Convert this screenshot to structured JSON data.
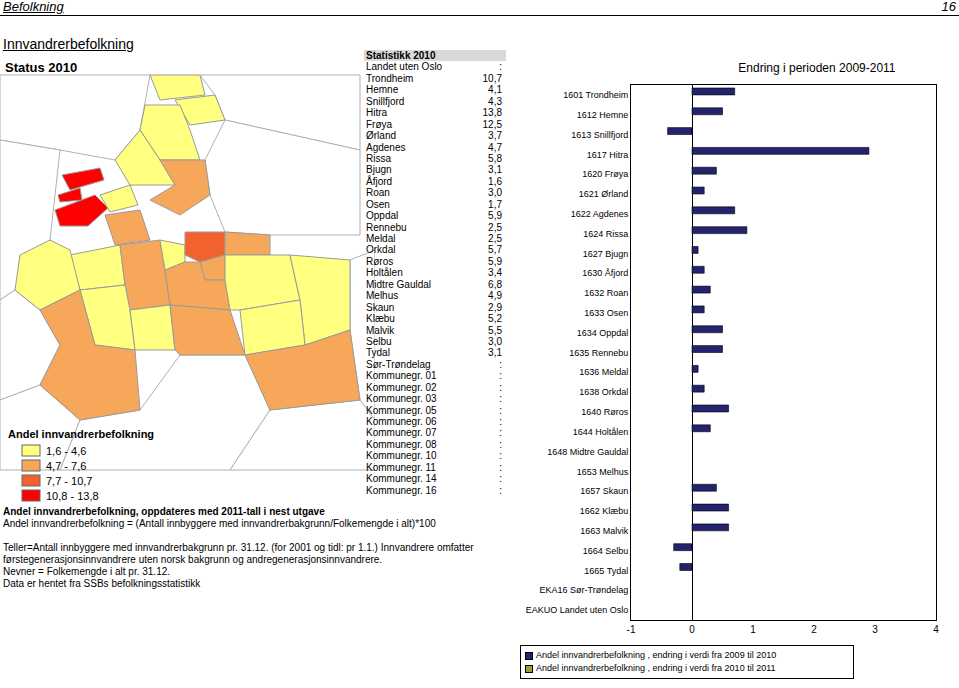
{
  "header": {
    "section": "Befolkning",
    "page": "16"
  },
  "title": "Innvandrerbefolkning",
  "map": {
    "heading": "Status 2010",
    "legend_title": "Andel innvandrerbefolkning",
    "bins": [
      {
        "from": 1.6,
        "to": 4.6,
        "label": "1,6 - 4,6",
        "color": "#ffff80"
      },
      {
        "from": 4.7,
        "to": 7.6,
        "label": "4,7 - 7,6",
        "color": "#f7a75a"
      },
      {
        "from": 7.7,
        "to": 10.7,
        "label": "7,7 - 10,7",
        "color": "#f2622f"
      },
      {
        "from": 10.8,
        "to": 13.8,
        "label": "10,8 - 13,8",
        "color": "#ff0000"
      }
    ]
  },
  "table": {
    "title": "Statistikk 2010",
    "rows": [
      [
        "Landet uten Oslo",
        ":"
      ],
      [
        "Trondheim",
        "10,7"
      ],
      [
        "Hemne",
        "4,1"
      ],
      [
        "Snillfjord",
        "4,3"
      ],
      [
        "Hitra",
        "13,8"
      ],
      [
        "Frøya",
        "12,5"
      ],
      [
        "Ørland",
        "3,7"
      ],
      [
        "Agdenes",
        "4,7"
      ],
      [
        "Rissa",
        "5,8"
      ],
      [
        "Bjugn",
        "3,1"
      ],
      [
        "Åfjord",
        "1,6"
      ],
      [
        "Roan",
        "3,0"
      ],
      [
        "Osen",
        "1,7"
      ],
      [
        "Oppdal",
        "5,9"
      ],
      [
        "Rennebu",
        "2,5"
      ],
      [
        "Meldal",
        "2,5"
      ],
      [
        "Orkdal",
        "5,7"
      ],
      [
        "Røros",
        "5,9"
      ],
      [
        "Holtålen",
        "3,4"
      ],
      [
        "Midtre Gauldal",
        "6,8"
      ],
      [
        "Melhus",
        "4,9"
      ],
      [
        "Skaun",
        "2,9"
      ],
      [
        "Klæbu",
        "5,2"
      ],
      [
        "Malvik",
        "5,5"
      ],
      [
        "Selbu",
        "3,0"
      ],
      [
        "Tydal",
        "3,1"
      ],
      [
        "Sør-Trøndelag",
        ":"
      ],
      [
        "Kommunegr. 01",
        ":"
      ],
      [
        "Kommunegr. 02",
        ":"
      ],
      [
        "Kommunegr. 03",
        ":"
      ],
      [
        "Kommunegr. 05",
        ":"
      ],
      [
        "Kommunegr. 06",
        ":"
      ],
      [
        "Kommunegr. 07",
        ":"
      ],
      [
        "Kommunegr. 08",
        ":"
      ],
      [
        "Kommunegr. 10",
        ":"
      ],
      [
        "Kommunegr. 11",
        ":"
      ],
      [
        "Kommunegr. 14",
        ":"
      ],
      [
        "Kommunegr. 16",
        ":"
      ]
    ]
  },
  "notes": [
    "Andel innvandrerbefolkning, oppdateres med 2011-tall i nest utgave",
    "Andel innvandrerbefolkning = (Antall innbyggere med innvandrerbakgrunn/Folkemengde i alt)*100",
    "Teller=Antall innbyggere med innvandrerbakgrunn pr. 31.12. (for 2001 og tidl: pr 1.1.) Innvandrere omfatter førstegenerasjonsinnvandrere uten norsk bakgrunn og andregenerasjonsinnvandrere.",
    "Nevner = Folkemengde i alt pr. 31.12.",
    "Data er hentet fra SSBs befolkningsstatistikk"
  ],
  "chart_data": {
    "type": "bar",
    "orientation": "horizontal",
    "title": "Endring i perioden 2009-2011",
    "categories": [
      "1601 Trondheim",
      "1612 Hemne",
      "1613 Snillfjord",
      "1617 Hitra",
      "1620 Frøya",
      "1621 Ørland",
      "1622 Agdenes",
      "1624 Rissa",
      "1627 Bjugn",
      "1630 Åfjord",
      "1632 Roan",
      "1633 Osen",
      "1634 Oppdal",
      "1635 Rennebu",
      "1636 Meldal",
      "1638 Orkdal",
      "1640 Røros",
      "1644 Holtålen",
      "1648 Midtre Gauldal",
      "1653 Melhus",
      "1657 Skaun",
      "1662 Klæbu",
      "1663 Malvik",
      "1664 Selbu",
      "1665 Tydal",
      "EKA16 Sør-Trøndelag",
      "EAKUO Landet uten Oslo"
    ],
    "series": [
      {
        "name": "Andel innvandrerbefolkning , endring i verdi fra 2009 til 2010",
        "color": "#23236e",
        "values": [
          0.7,
          0.5,
          -0.4,
          2.9,
          0.4,
          0.2,
          0.7,
          0.9,
          0.1,
          0.2,
          0.3,
          0.2,
          0.5,
          0.5,
          0.1,
          0.2,
          0.6,
          0.3,
          null,
          null,
          0.4,
          0.6,
          0.6,
          -0.3,
          -0.2,
          null,
          null
        ]
      },
      {
        "name": "Andel innvandrerbefolkning , endring i verdi fra 2010 til 2011",
        "color": "#9c9c3c",
        "values": [
          null,
          null,
          null,
          null,
          null,
          null,
          null,
          null,
          null,
          null,
          null,
          null,
          null,
          null,
          null,
          null,
          null,
          null,
          null,
          null,
          null,
          null,
          null,
          null,
          null,
          null,
          null
        ]
      }
    ],
    "xlim": [
      -1,
      4
    ],
    "xticks": [
      -1,
      0,
      1,
      2,
      3,
      4
    ],
    "grid": false,
    "legend": "bottom"
  }
}
